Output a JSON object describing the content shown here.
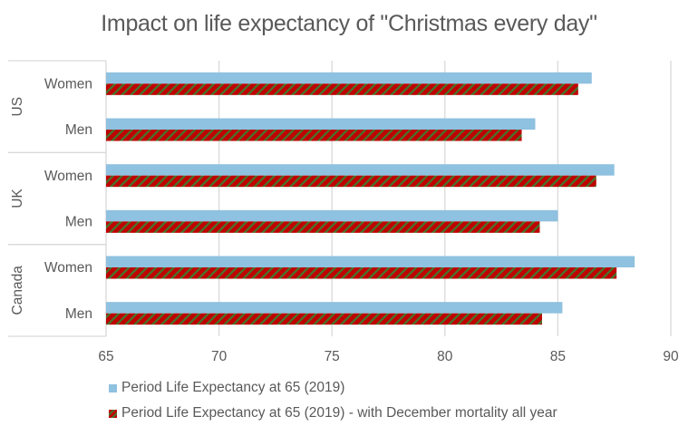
{
  "chart_data": {
    "type": "bar",
    "orientation": "horizontal",
    "title": "Impact on life expectancy of \"Christmas every day\"",
    "xlabel": "",
    "ylabel": "",
    "xlim": [
      65,
      90
    ],
    "x_ticks": [
      65,
      70,
      75,
      80,
      85,
      90
    ],
    "grid": true,
    "legend_position": "bottom-left",
    "groups": [
      {
        "name": "US",
        "categories": [
          "Women",
          "Men"
        ]
      },
      {
        "name": "UK",
        "categories": [
          "Women",
          "Men"
        ]
      },
      {
        "name": "Canada",
        "categories": [
          "Women",
          "Men"
        ]
      }
    ],
    "categories": [
      "US Women",
      "US Men",
      "UK Women",
      "UK Men",
      "Canada Women",
      "Canada Men"
    ],
    "series": [
      {
        "name": "Period Life Expectancy at 65 (2019)",
        "color": "#8FC1E0",
        "pattern": "solid",
        "values": [
          86.5,
          84.0,
          87.5,
          85.0,
          88.4,
          85.2
        ]
      },
      {
        "name": "Period Life Expectancy at 65 (2019) - with December mortality all year",
        "color": "#C00000",
        "pattern_color": "#4E6E2B",
        "pattern": "diagonal-stripes",
        "values": [
          85.9,
          83.4,
          86.7,
          84.2,
          87.6,
          84.3
        ]
      }
    ]
  }
}
